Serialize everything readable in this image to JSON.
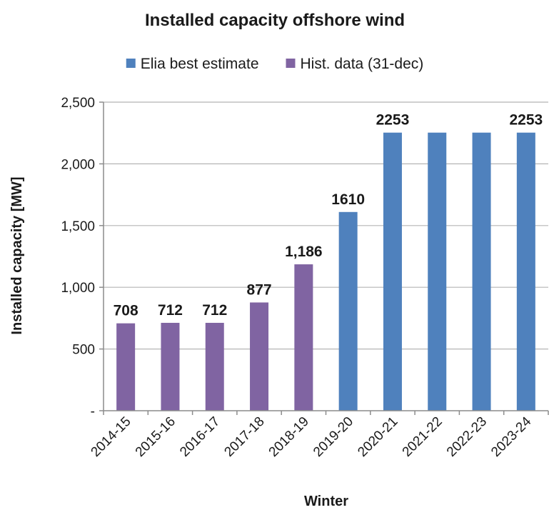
{
  "chart_data": {
    "type": "bar",
    "title": "Installed capacity offshore wind",
    "xlabel": "Winter",
    "ylabel": "Installed capacity [MW]",
    "ylim": [
      0,
      2500
    ],
    "yticks": [
      0,
      500,
      1000,
      1500,
      2000,
      2500
    ],
    "ytick_labels": [
      "-",
      "500",
      "1,000",
      "1,500",
      "2,000",
      "2,500"
    ],
    "grid": true,
    "legend_position": "top",
    "categories": [
      "2014-15",
      "2015-16",
      "2016-17",
      "2017-18",
      "2018-19",
      "2019-20",
      "2020-21",
      "2021-22",
      "2022-23",
      "2023-24"
    ],
    "series": [
      {
        "name": "Elia best estimate",
        "color": "#4f81bd",
        "values": [
          null,
          null,
          null,
          null,
          null,
          1610,
          2253,
          2253,
          2253,
          2253
        ]
      },
      {
        "name": "Hist. data (31-dec)",
        "color": "#8064a2",
        "values": [
          708,
          712,
          712,
          877,
          1186,
          null,
          null,
          null,
          null,
          null
        ]
      }
    ],
    "data_labels": [
      "708",
      "712",
      "712",
      "877",
      "1,186",
      "1610",
      "2253",
      "",
      "",
      "2253"
    ]
  }
}
